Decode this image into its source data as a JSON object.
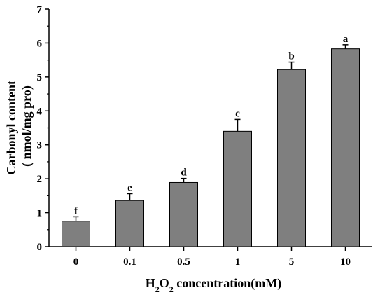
{
  "chart_data": {
    "type": "bar",
    "categories": [
      "0",
      "0.1",
      "0.5",
      "1",
      "5",
      "10"
    ],
    "values": [
      0.75,
      1.36,
      1.89,
      3.4,
      5.22,
      5.83
    ],
    "errors": [
      0.13,
      0.2,
      0.12,
      0.35,
      0.22,
      0.12
    ],
    "significance": [
      "f",
      "e",
      "d",
      "c",
      "b",
      "a"
    ],
    "title": "",
    "xlabel": {
      "prefix": "H",
      "sub1": "2",
      "mid": "O",
      "sub2": "2",
      "suffix": " concentration(mM)"
    },
    "ylabel": [
      "Carbonyl content",
      "( nmol/mg pro)"
    ],
    "ylim": [
      0,
      7
    ],
    "yticks": [
      0,
      1,
      2,
      3,
      4,
      5,
      6,
      7
    ],
    "grid": false,
    "colors": {
      "bar": "#7f7f7f",
      "bar_stroke": "#000000",
      "axis": "#000000"
    }
  }
}
